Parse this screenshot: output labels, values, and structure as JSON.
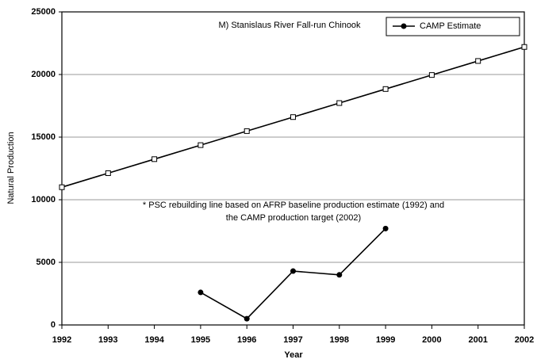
{
  "chart_data": {
    "type": "line",
    "title": "M) Stanislaus River Fall-run Chinook",
    "annotations": [
      "* PSC rebuilding line based on AFRP baseline production estimate (1992) and",
      "the CAMP production target (2002)"
    ],
    "x_label": "Year",
    "y_label": "Natural Production",
    "x": [
      1992,
      1993,
      1994,
      1995,
      1996,
      1997,
      1998,
      1999,
      2000,
      2001,
      2002
    ],
    "series": [
      {
        "color": "#000000",
        "marker": "square",
        "values": [
          11000,
          12120,
          13240,
          14360,
          15480,
          16600,
          17720,
          18840,
          19960,
          21080,
          22200
        ]
      },
      {
        "name": "CAMP Estimate",
        "color": "#000000",
        "marker": "circle",
        "values": [
          null,
          null,
          null,
          2600,
          500,
          4300,
          4000,
          7700,
          null,
          null,
          null
        ]
      }
    ],
    "xlim": [
      1992,
      2002
    ],
    "xticks": [
      1992,
      1993,
      1994,
      1995,
      1996,
      1997,
      1998,
      1999,
      2000,
      2001,
      2002
    ],
    "ylim": [
      0,
      25000
    ],
    "yticks": [
      0,
      5000,
      10000,
      15000,
      20000,
      25000
    ],
    "grid": true,
    "legend_position": "top-right"
  }
}
